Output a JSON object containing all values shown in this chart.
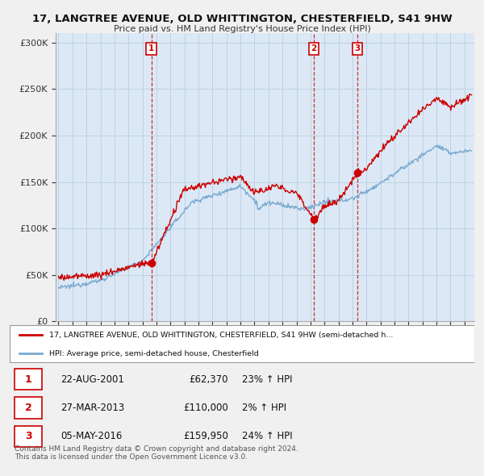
{
  "title": "17, LANGTREE AVENUE, OLD WHITTINGTON, CHESTERFIELD, S41 9HW",
  "subtitle": "Price paid vs. HM Land Registry's House Price Index (HPI)",
  "background_color": "#f0f0f0",
  "plot_bg_color": "#dce8f5",
  "grid_color": "#b8cfe0",
  "ylim": [
    0,
    310000
  ],
  "yticks": [
    0,
    50000,
    100000,
    150000,
    200000,
    250000,
    300000
  ],
  "ytick_labels": [
    "£0",
    "£50K",
    "£100K",
    "£150K",
    "£200K",
    "£250K",
    "£300K"
  ],
  "xlim_start": 1994.8,
  "xlim_end": 2024.7,
  "red_line_label": "17, LANGTREE AVENUE, OLD WHITTINGTON, CHESTERFIELD, S41 9HW (semi-detached h...",
  "blue_line_label": "HPI: Average price, semi-detached house, Chesterfield",
  "sale_points": [
    {
      "year": 2001.64,
      "price": 62370,
      "label": "1"
    },
    {
      "year": 2013.24,
      "price": 110000,
      "label": "2"
    },
    {
      "year": 2016.34,
      "price": 159950,
      "label": "3"
    }
  ],
  "sale_annotations": [
    {
      "label": "1",
      "date": "22-AUG-2001",
      "price": "£62,370",
      "hpi_change": "23% ↑ HPI"
    },
    {
      "label": "2",
      "date": "27-MAR-2013",
      "price": "£110,000",
      "hpi_change": "2% ↑ HPI"
    },
    {
      "label": "3",
      "date": "05-MAY-2016",
      "price": "£159,950",
      "hpi_change": "24% ↑ HPI"
    }
  ],
  "footer": "Contains HM Land Registry data © Crown copyright and database right 2024.\nThis data is licensed under the Open Government Licence v3.0.",
  "red_color": "#cc0000",
  "blue_color": "#7aaad0",
  "dot_color": "#cc0000",
  "vline_color": "#cc0000",
  "label_box_color": "#cc0000"
}
